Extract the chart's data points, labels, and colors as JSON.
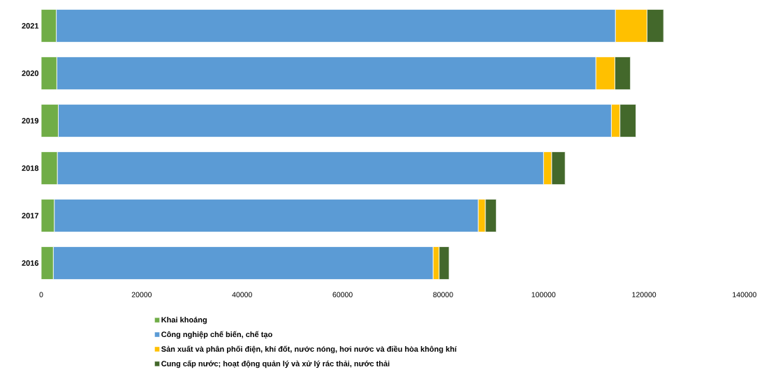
{
  "chart_data": {
    "type": "bar",
    "orientation": "horizontal",
    "stacked": true,
    "legend": "bottom",
    "categories": [
      "2021",
      "2020",
      "2019",
      "2018",
      "2017",
      "2016"
    ],
    "xlim": [
      0,
      140000
    ],
    "xticks": [
      0,
      20000,
      40000,
      60000,
      80000,
      100000,
      120000,
      140000
    ],
    "series": [
      {
        "name": "Khai khoáng",
        "color": "#70ad47",
        "values": [
          3000,
          3100,
          3400,
          3200,
          2600,
          2400
        ]
      },
      {
        "name": "Công nghiệp chế biến, chế tạo",
        "color": "#5b9bd5",
        "values": [
          111300,
          107300,
          110100,
          96800,
          84400,
          75600
        ]
      },
      {
        "name": "Sản xuất và phân phối điện, khí đốt, nước nóng, hơi nước và điều hòa không khí",
        "color": "#ffc000",
        "values": [
          6300,
          3800,
          1700,
          1600,
          1400,
          1200
        ]
      },
      {
        "name": "Cung cấp nước; hoạt động quản lý và xử lý rác thải, nước thải",
        "color": "#43682b",
        "values": [
          3300,
          3100,
          3200,
          2700,
          2200,
          2000
        ]
      }
    ]
  }
}
